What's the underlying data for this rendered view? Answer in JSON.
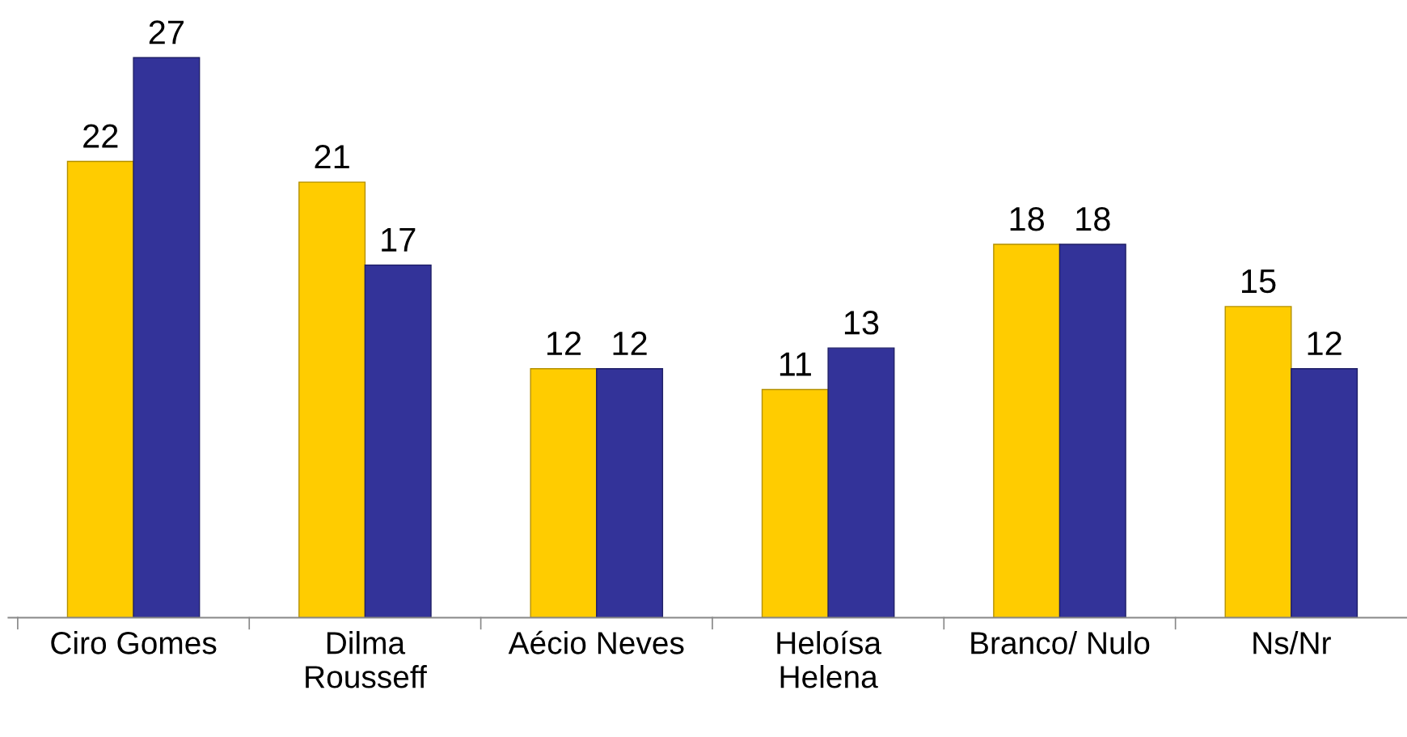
{
  "chart_data": {
    "type": "bar",
    "categories": [
      "Ciro Gomes",
      "Dilma\nRousseff",
      "Aécio Neves",
      "Heloísa\nHelena",
      "Branco/ Nulo",
      "Ns/Nr"
    ],
    "series": [
      {
        "color": "#ffcc00",
        "values": [
          22,
          21,
          12,
          11,
          18,
          15
        ]
      },
      {
        "color": "#333399",
        "values": [
          27,
          17,
          12,
          13,
          18,
          12
        ]
      }
    ],
    "data_labels": true,
    "grid": false,
    "legend": false,
    "tick_labels": "x"
  }
}
